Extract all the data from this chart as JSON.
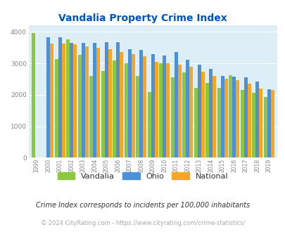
{
  "title": "Vandalia Property Crime Index",
  "years": [
    1999,
    2000,
    2001,
    2002,
    2003,
    2004,
    2005,
    2006,
    2007,
    2008,
    2009,
    2010,
    2011,
    2012,
    2013,
    2014,
    2015,
    2016,
    2017,
    2018,
    2019
  ],
  "vandalia": [
    3950,
    0,
    3130,
    3760,
    3270,
    2600,
    2750,
    3100,
    3010,
    2600,
    2080,
    3010,
    2560,
    2700,
    2220,
    2370,
    2230,
    2620,
    2160,
    2060,
    1920
  ],
  "ohio": [
    0,
    3830,
    3830,
    3640,
    3640,
    3640,
    3670,
    3670,
    3450,
    3430,
    3290,
    3250,
    3360,
    3110,
    2950,
    2820,
    2600,
    2570,
    2560,
    2430,
    2170
  ],
  "national": [
    0,
    3620,
    3620,
    3610,
    3530,
    3490,
    3440,
    3350,
    3290,
    3220,
    3050,
    3010,
    2950,
    2880,
    2730,
    2610,
    2500,
    2460,
    2360,
    2200,
    2160
  ],
  "vandalia_color": "#8dc63f",
  "ohio_color": "#4d90d5",
  "national_color": "#f5a623",
  "bg_color": "#ddeef6",
  "ylim": [
    0,
    4200
  ],
  "yticks": [
    0,
    1000,
    2000,
    3000,
    4000
  ],
  "legend_labels": [
    "Vandalia",
    "Ohio",
    "National"
  ],
  "footnote1": "Crime Index corresponds to incidents per 100,000 inhabitants",
  "footnote2": "© 2024 CityRating.com - https://www.cityrating.com/crime-statistics/"
}
